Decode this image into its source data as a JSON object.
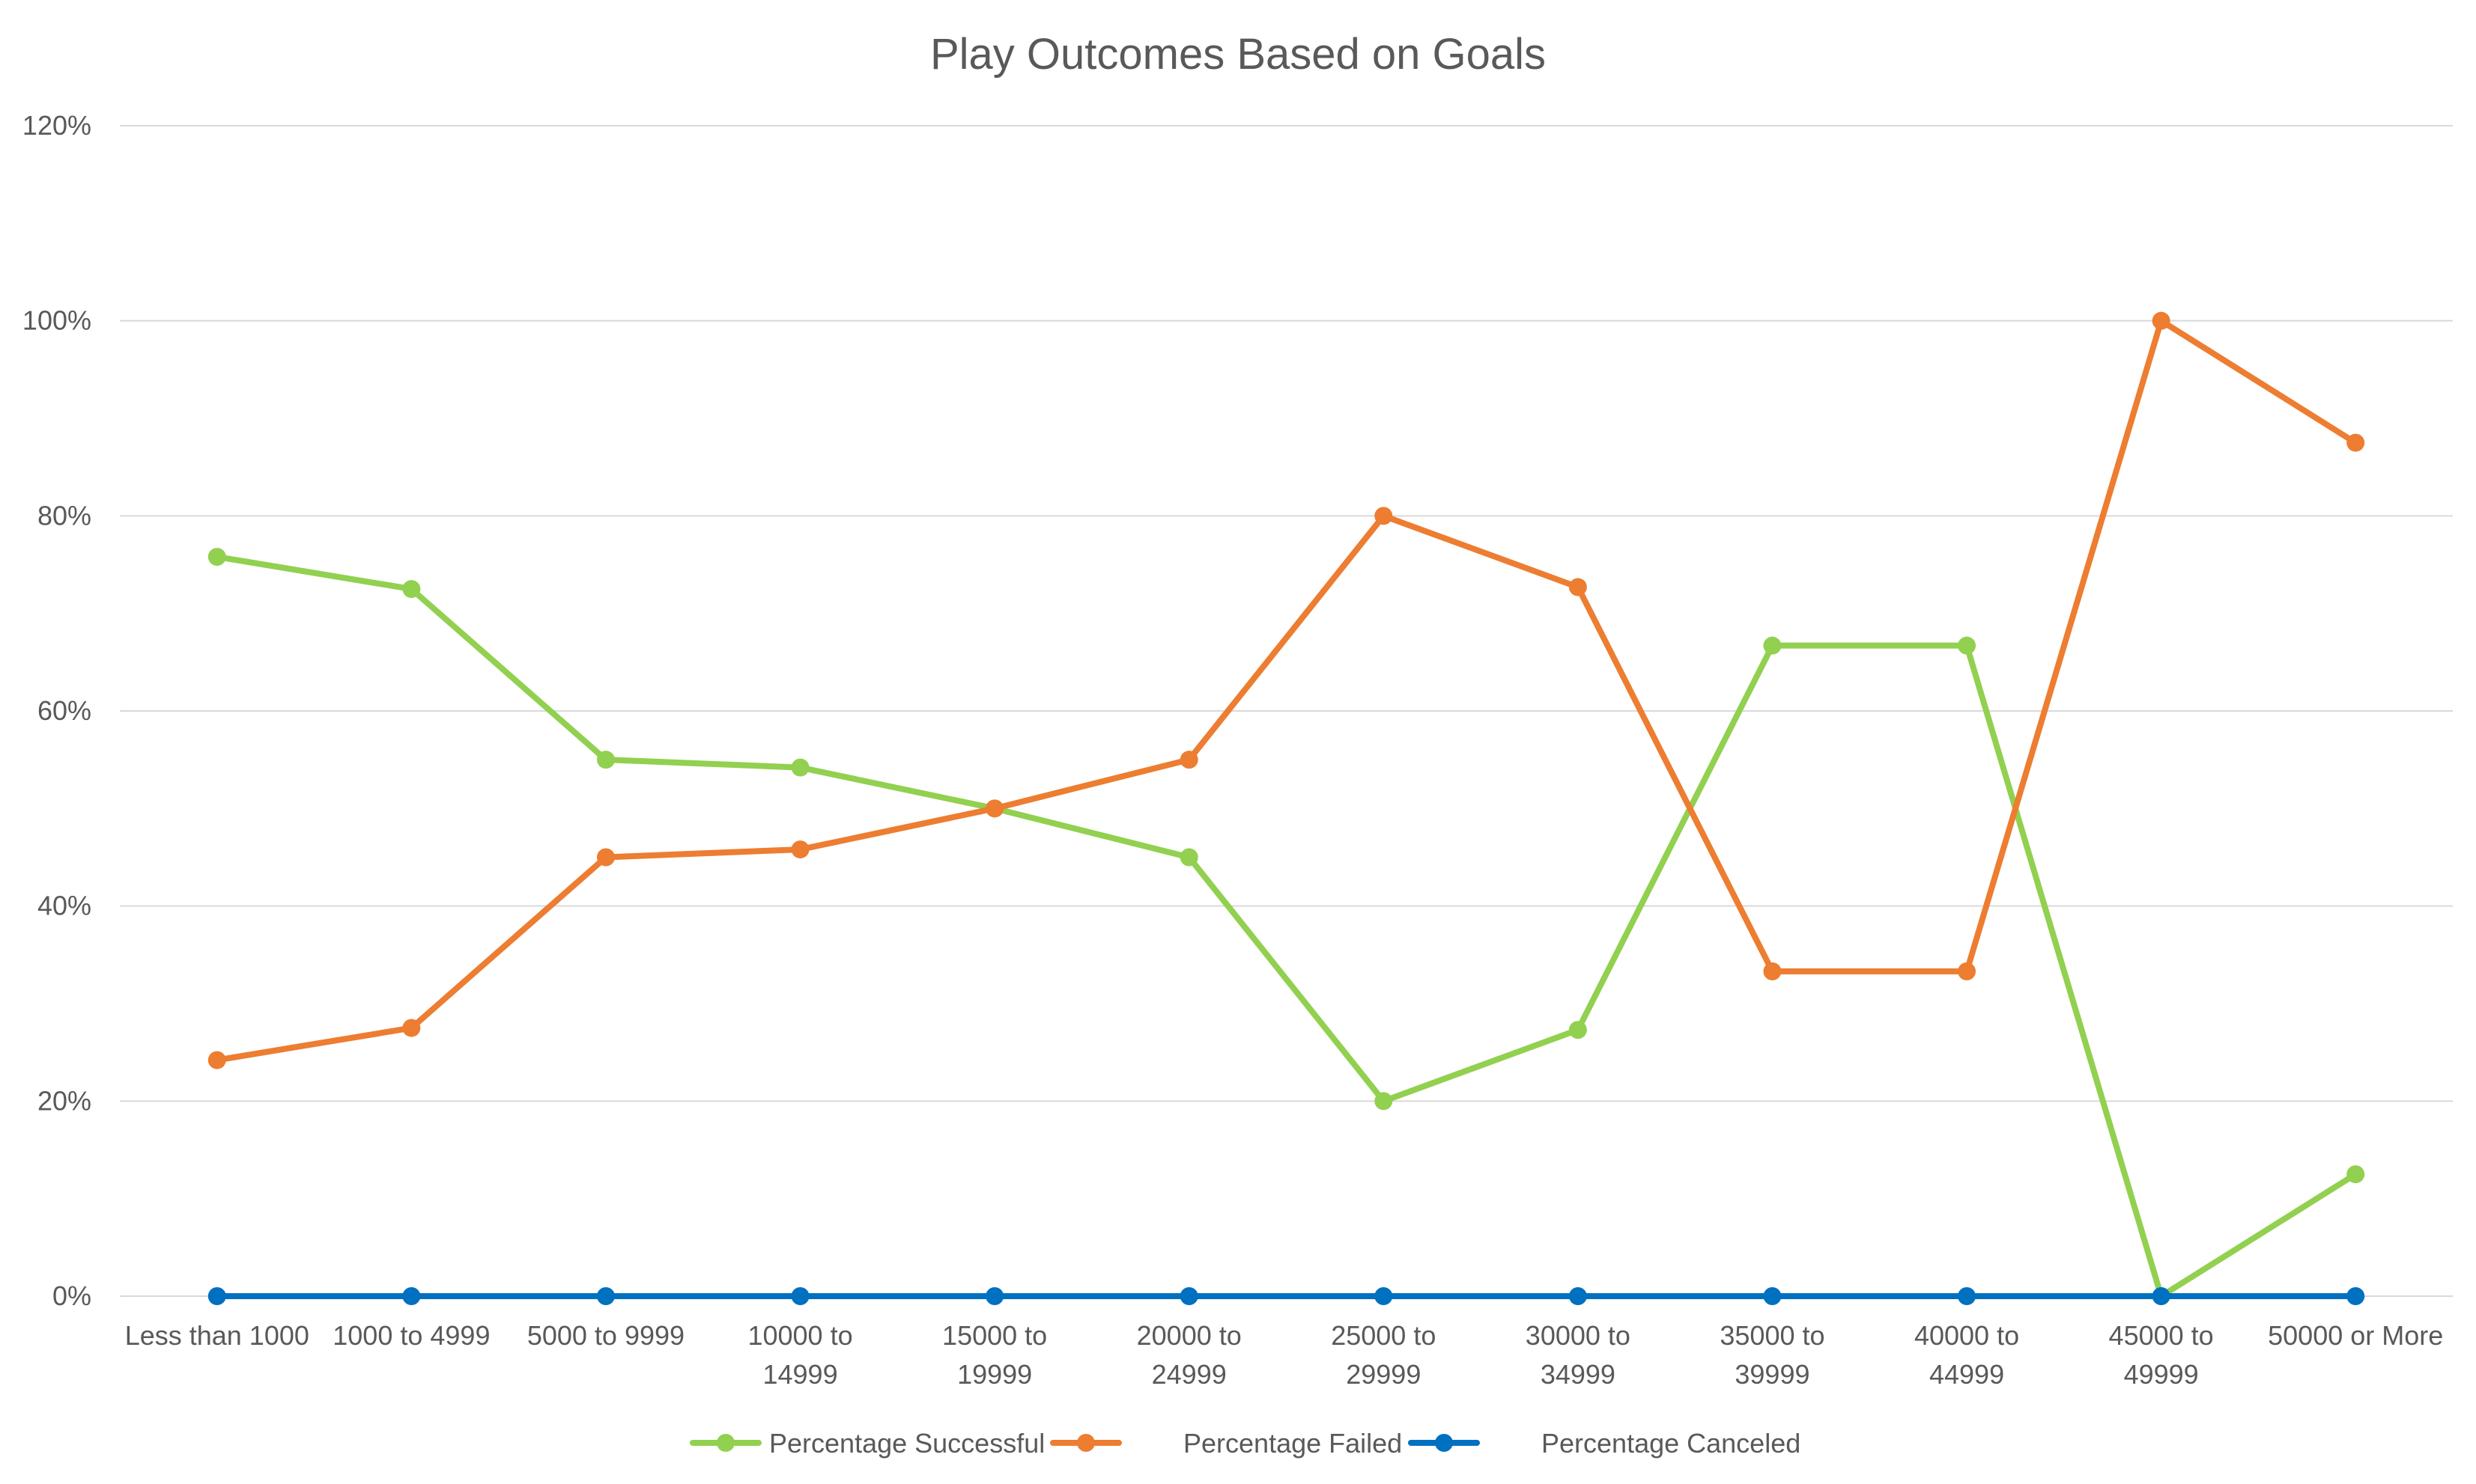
{
  "chart_data": {
    "type": "line",
    "title": "Play Outcomes Based on Goals",
    "xlabel": "",
    "ylabel": "",
    "ylim": [
      0,
      1.2
    ],
    "y_ticks": [
      {
        "value": 0,
        "label": "0%"
      },
      {
        "value": 0.2,
        "label": "20%"
      },
      {
        "value": 0.4,
        "label": "40%"
      },
      {
        "value": 0.6,
        "label": "60%"
      },
      {
        "value": 0.8,
        "label": "80%"
      },
      {
        "value": 1.0,
        "label": "100%"
      },
      {
        "value": 1.2,
        "label": "120%"
      }
    ],
    "grid": true,
    "legend_position": "bottom",
    "categories": [
      [
        "Less than 1000"
      ],
      [
        "1000 to 4999"
      ],
      [
        "5000 to 9999"
      ],
      [
        "10000 to",
        "14999"
      ],
      [
        "15000 to",
        "19999"
      ],
      [
        "20000 to",
        "24999"
      ],
      [
        "25000 to",
        "29999"
      ],
      [
        "30000 to",
        "34999"
      ],
      [
        "35000 to",
        "39999"
      ],
      [
        "40000 to",
        "44999"
      ],
      [
        "45000 to",
        "49999"
      ],
      [
        "50000 or More"
      ]
    ],
    "series": [
      {
        "name": "Percentage Successful",
        "color": "#92d050",
        "values": [
          0.758,
          0.725,
          0.55,
          0.542,
          0.5,
          0.45,
          0.2,
          0.273,
          0.667,
          0.667,
          0.0,
          0.125
        ]
      },
      {
        "name": "Percentage Failed",
        "color": "#ed7d31",
        "values": [
          0.242,
          0.275,
          0.45,
          0.458,
          0.5,
          0.55,
          0.8,
          0.727,
          0.333,
          0.333,
          1.0,
          0.875
        ]
      },
      {
        "name": "Percentage Canceled",
        "color": "#0070c0",
        "values": [
          0,
          0,
          0,
          0,
          0,
          0,
          0,
          0,
          0,
          0,
          0,
          0
        ]
      }
    ]
  }
}
